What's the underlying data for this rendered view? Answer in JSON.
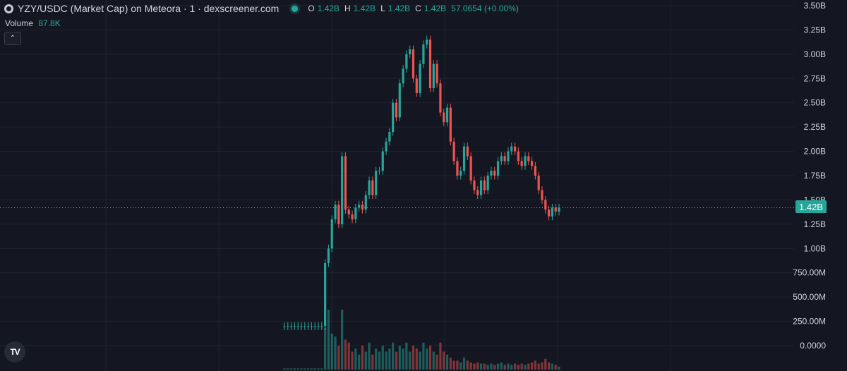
{
  "header": {
    "title": "YZY/USDC (Market Cap) on Meteora · 1 · dexscreener.com",
    "ohlc": [
      {
        "key": "O",
        "value": "1.42B"
      },
      {
        "key": "H",
        "value": "1.42B"
      },
      {
        "key": "L",
        "value": "1.42B"
      },
      {
        "key": "C",
        "value": "1.42B"
      }
    ],
    "change": "57.0654 (+0.00%)"
  },
  "volume": {
    "label": "Volume",
    "value": "87.8K"
  },
  "last_price_tag": "1.42B",
  "watermark": "TV",
  "collapse_icon": "chevron-up-icon",
  "colors": {
    "background": "#141721",
    "up": "#26a69a",
    "down": "#ef5350",
    "grid": "#1f2330",
    "text": "#d1d4dc"
  },
  "chart_data": {
    "type": "candlestick",
    "title": "YZY/USDC (Market Cap) on Meteora · 1 · dexscreener.com",
    "y_tick_labels": [
      "0.0000",
      "250.00M",
      "500.00M",
      "750.00M",
      "1.00B",
      "1.25B",
      "1.50B",
      "1.75B",
      "2.00B",
      "2.25B",
      "2.50B",
      "2.75B",
      "3.00B",
      "3.25B",
      "3.50B"
    ],
    "ylim_billions": [
      0,
      3.5
    ],
    "last_value_billions": 1.42,
    "grid": true,
    "close_billions": [
      0.2,
      0.2,
      0.2,
      0.2,
      0.2,
      0.2,
      0.2,
      0.2,
      0.2,
      0.2,
      0.2,
      0.2,
      0.85,
      1.0,
      1.3,
      1.45,
      1.25,
      1.95,
      1.4,
      1.35,
      1.3,
      1.42,
      1.45,
      1.4,
      1.55,
      1.7,
      1.55,
      1.8,
      1.8,
      2.0,
      2.1,
      2.2,
      2.5,
      2.35,
      2.7,
      2.85,
      3.0,
      3.05,
      2.75,
      2.6,
      2.9,
      3.1,
      3.15,
      2.65,
      2.9,
      2.7,
      2.4,
      2.3,
      2.45,
      2.1,
      1.9,
      1.75,
      1.8,
      2.05,
      1.95,
      1.7,
      1.6,
      1.55,
      1.7,
      1.6,
      1.75,
      1.8,
      1.75,
      1.9,
      1.95,
      1.9,
      2.0,
      2.05,
      2.0,
      1.9,
      1.85,
      1.95,
      1.9,
      1.85,
      1.75,
      1.6,
      1.5,
      1.4,
      1.33,
      1.42,
      1.38,
      1.42
    ],
    "volume_relative": [
      0.02,
      0.02,
      0.02,
      0.02,
      0.02,
      0.02,
      0.02,
      0.02,
      0.02,
      0.02,
      0.02,
      0.02,
      0.7,
      1.0,
      0.6,
      0.55,
      0.4,
      1.0,
      0.5,
      0.45,
      0.3,
      0.35,
      0.25,
      0.4,
      0.3,
      0.45,
      0.25,
      0.35,
      0.3,
      0.4,
      0.3,
      0.35,
      0.45,
      0.3,
      0.4,
      0.35,
      0.45,
      0.3,
      0.4,
      0.35,
      0.3,
      0.45,
      0.35,
      0.4,
      0.3,
      0.25,
      0.45,
      0.3,
      0.25,
      0.2,
      0.15,
      0.15,
      0.12,
      0.2,
      0.15,
      0.12,
      0.1,
      0.12,
      0.1,
      0.1,
      0.08,
      0.1,
      0.08,
      0.1,
      0.12,
      0.08,
      0.1,
      0.08,
      0.1,
      0.08,
      0.1,
      0.08,
      0.1,
      0.12,
      0.15,
      0.1,
      0.12,
      0.18,
      0.12,
      0.1,
      0.08,
      0.05
    ]
  }
}
